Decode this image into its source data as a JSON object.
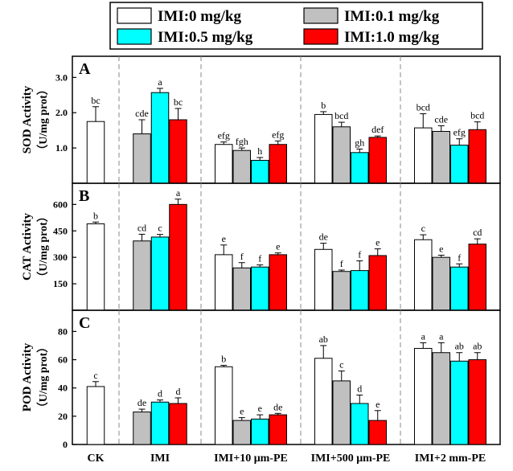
{
  "legend": {
    "items": [
      {
        "label": "IMI:0 mg/kg",
        "color": "#ffffff"
      },
      {
        "label": "IMI:0.1 mg/kg",
        "color": "#c0c0c0"
      },
      {
        "label": "IMI:0.5 mg/kg",
        "color": "#00ffff"
      },
      {
        "label": "IMI:1.0 mg/kg",
        "color": "#ff0000"
      }
    ]
  },
  "colors": {
    "series": [
      "#ffffff",
      "#c0c0c0",
      "#00ffff",
      "#ff0000"
    ],
    "outline": "#000000",
    "divider": "#888888"
  },
  "chart_data": {
    "type": "bar",
    "categories": [
      "CK",
      "IMI",
      "IMI+10 μm-PE",
      "IMI+500 μm-PE",
      "IMI+2 mm-PE"
    ],
    "series_names": [
      "IMI:0 mg/kg",
      "IMI:0.1 mg/kg",
      "IMI:0.5 mg/kg",
      "IMI:1.0 mg/kg"
    ],
    "panels": [
      {
        "id": "A",
        "ylabel": [
          "SOD Activity",
          "（U/mg prot）"
        ],
        "ylim": [
          0,
          3.6
        ],
        "yticks": [
          1.0,
          2.0,
          3.0
        ],
        "ytick_labels": [
          "1.0",
          "2.0",
          "3.0"
        ],
        "groups": [
          {
            "values": [
              1.75
            ],
            "errors": [
              0.42
            ],
            "letters": [
              "bc"
            ]
          },
          {
            "values": [
              1.4,
              2.57,
              1.8
            ],
            "errors": [
              0.4,
              0.12,
              0.32
            ],
            "letters": [
              "cde",
              "a",
              "bc"
            ]
          },
          {
            "values": [
              1.1,
              0.93,
              0.65,
              1.1
            ],
            "errors": [
              0.07,
              0.07,
              0.08,
              0.1
            ],
            "letters": [
              "efg",
              "fgh",
              "h",
              "efg"
            ]
          },
          {
            "values": [
              1.95,
              1.6,
              0.87,
              1.3
            ],
            "errors": [
              0.08,
              0.13,
              0.1,
              0.04
            ],
            "letters": [
              "b",
              "bcd",
              "gh",
              "def"
            ]
          },
          {
            "values": [
              1.57,
              1.47,
              1.08,
              1.52
            ],
            "errors": [
              0.4,
              0.16,
              0.18,
              0.22
            ],
            "letters": [
              "bcd",
              "cde",
              "efg",
              "bcd"
            ]
          }
        ]
      },
      {
        "id": "B",
        "ylabel": [
          "CAT Activity",
          "（U/mg prot）"
        ],
        "ylim": [
          0,
          720
        ],
        "yticks": [
          150,
          300,
          450,
          600
        ],
        "ytick_labels": [
          "150",
          "300",
          "450",
          "600"
        ],
        "groups": [
          {
            "values": [
              490
            ],
            "errors": [
              10
            ],
            "letters": [
              "b"
            ]
          },
          {
            "values": [
              393,
              415,
              600
            ],
            "errors": [
              38,
              15,
              30
            ],
            "letters": [
              "cd",
              "c",
              "a"
            ]
          },
          {
            "values": [
              315,
              240,
              245,
              315
            ],
            "errors": [
              55,
              30,
              12,
              10
            ],
            "letters": [
              "e",
              "f",
              "f",
              "e"
            ]
          },
          {
            "values": [
              345,
              220,
              225,
              310
            ],
            "errors": [
              35,
              8,
              55,
              38
            ],
            "letters": [
              "de",
              "f",
              "f",
              "e"
            ]
          },
          {
            "values": [
              400,
              300,
              245,
              375
            ],
            "errors": [
              28,
              12,
              18,
              30
            ],
            "letters": [
              "c",
              "e",
              "f",
              "cd"
            ]
          }
        ]
      },
      {
        "id": "C",
        "ylabel": [
          "POD Activity",
          "（U/mg prot）"
        ],
        "ylim": [
          0,
          95
        ],
        "yticks": [
          0,
          20,
          40,
          60,
          80
        ],
        "ytick_labels": [
          "0",
          "20",
          "40",
          "60",
          "80"
        ],
        "groups": [
          {
            "values": [
              41
            ],
            "errors": [
              3.5
            ],
            "letters": [
              "c"
            ]
          },
          {
            "values": [
              23,
              30,
              29
            ],
            "errors": [
              2,
              1.5,
              4
            ],
            "letters": [
              "de",
              "d",
              "d"
            ]
          },
          {
            "values": [
              55,
              17,
              18,
              21
            ],
            "errors": [
              1,
              2,
              3,
              1
            ],
            "letters": [
              "b",
              "e",
              "e",
              "de"
            ]
          },
          {
            "values": [
              61,
              45,
              29,
              17
            ],
            "errors": [
              9,
              7,
              6,
              7
            ],
            "letters": [
              "ab",
              "c",
              "d",
              "e"
            ]
          },
          {
            "values": [
              68,
              65,
              59,
              60
            ],
            "errors": [
              4,
              7,
              6,
              5
            ],
            "letters": [
              "a",
              "a",
              "ab",
              "ab"
            ]
          }
        ]
      }
    ]
  }
}
